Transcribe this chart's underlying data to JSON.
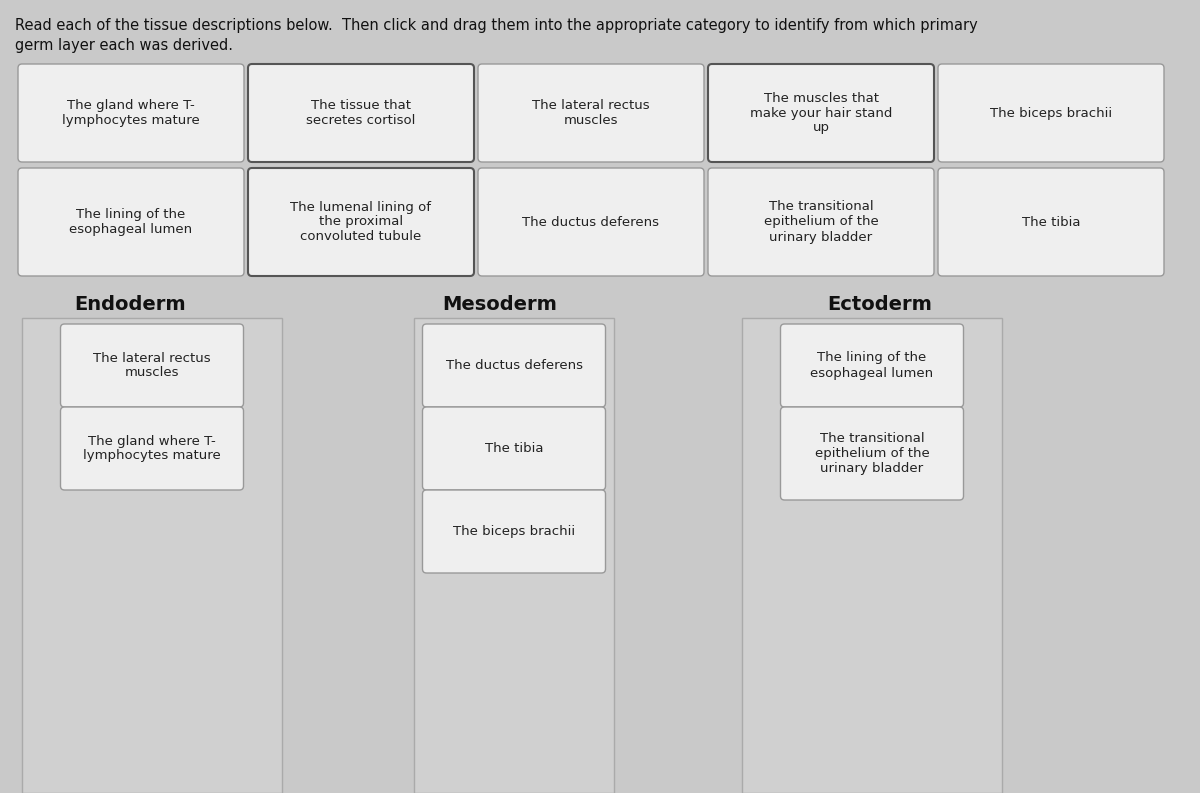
{
  "title_line1": "Read each of the tissue descriptions below.  Then click and drag them into the appropriate category to identify from which primary",
  "title_line2": "germ layer each was derived.",
  "title_fontsize": 10.5,
  "bg_color": "#c9c9c9",
  "card_bg": "#efefef",
  "card_border": "#999999",
  "card_border_dark": "#555555",
  "card_text_color": "#222222",
  "column_bg": "#c9c9c9",
  "column_border": "#aaaaaa",
  "top_cards_row1": [
    "The gland where T-\nlymphocytes mature",
    "The tissue that\nsecretes cortisol",
    "The lateral rectus\nmuscles",
    "The muscles that\nmake your hair stand\nup",
    "The biceps brachii"
  ],
  "top_cards_row1_dark": [
    false,
    true,
    false,
    true,
    false
  ],
  "top_cards_row2": [
    "The lining of the\nesophageal lumen",
    "The lumenal lining of\nthe proximal\nconvoluted tubule",
    "The ductus deferens",
    "The transitional\nepithelium of the\nurinary bladder",
    "The tibia"
  ],
  "top_cards_row2_dark": [
    false,
    true,
    false,
    false,
    false
  ],
  "categories": [
    "Endoderm",
    "Mesoderm",
    "Ectoderm"
  ],
  "category_items": {
    "Endoderm": [
      "The lateral rectus\nmuscles",
      "The gland where T-\nlymphocytes mature"
    ],
    "Mesoderm": [
      "The ductus deferens",
      "The tibia",
      "The biceps brachii"
    ],
    "Ectoderm": [
      "The lining of the\nesophageal lumen",
      "The transitional\nepithelium of the\nurinary bladder"
    ]
  }
}
